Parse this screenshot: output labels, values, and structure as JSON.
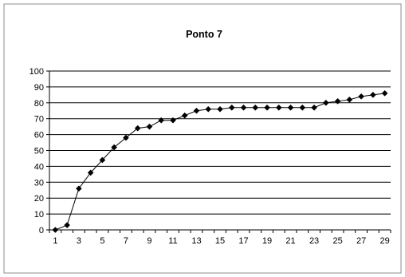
{
  "chart_data": {
    "type": "line",
    "title": "Ponto 7",
    "xlabel": "",
    "ylabel": "",
    "x": [
      1,
      2,
      3,
      4,
      5,
      6,
      7,
      8,
      9,
      10,
      11,
      12,
      13,
      14,
      15,
      16,
      17,
      18,
      19,
      20,
      21,
      22,
      23,
      24,
      25,
      26,
      27,
      28,
      29
    ],
    "x_tick_labels": [
      "1",
      "3",
      "5",
      "7",
      "9",
      "11",
      "13",
      "15",
      "17",
      "19",
      "21",
      "23",
      "25",
      "27",
      "29"
    ],
    "y_tick_labels": [
      "0",
      "10",
      "20",
      "30",
      "40",
      "50",
      "60",
      "70",
      "80",
      "90",
      "100"
    ],
    "ylim": [
      0,
      100
    ],
    "grid": "horizontal",
    "legend": "none",
    "series": [
      {
        "values": [
          0,
          3,
          26,
          36,
          44,
          52,
          58,
          64,
          65,
          69,
          69,
          72,
          75,
          76,
          76,
          77,
          77,
          77,
          77,
          77,
          77,
          77,
          77,
          80,
          81,
          82,
          84,
          85,
          86
        ]
      }
    ],
    "colors": {
      "line": "#000000",
      "marker": "#000000",
      "grid": "#000000",
      "frame": "#8c8c8c"
    }
  }
}
